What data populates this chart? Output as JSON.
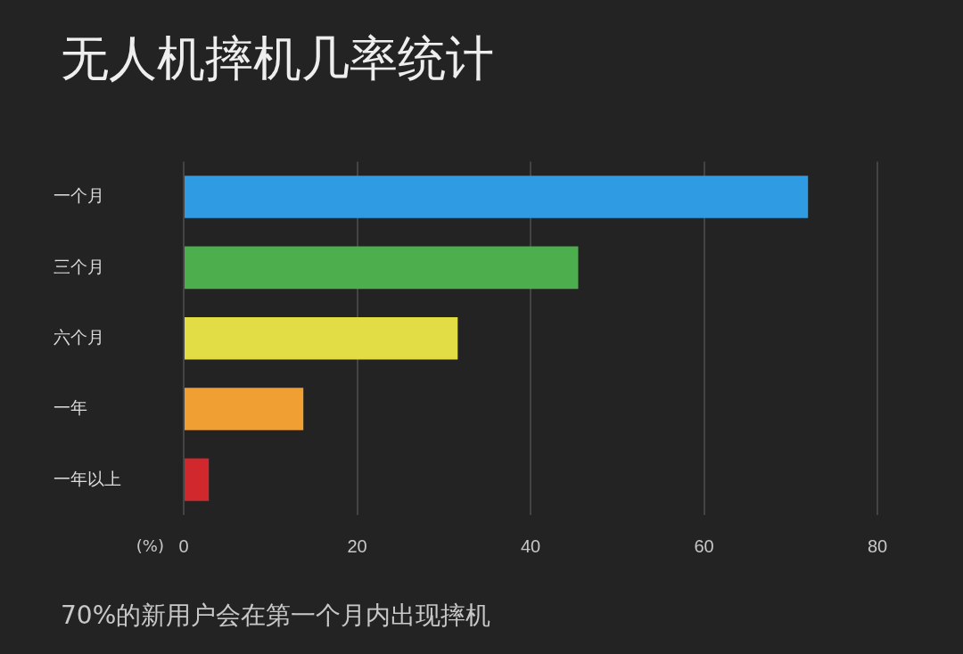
{
  "chart_data": {
    "type": "bar",
    "orientation": "horizontal",
    "title": "无人机摔机几率统计",
    "xlabel": "(%)",
    "categories": [
      "一个月",
      "三个月",
      "六个月",
      "一年",
      "一年以上"
    ],
    "values": [
      72,
      45.5,
      31.6,
      13.8,
      2.9
    ],
    "colors": [
      "#2f9be3",
      "#4cae4c",
      "#e2dc45",
      "#f0a033",
      "#d1282e"
    ],
    "xlim": [
      0,
      80
    ],
    "xticks": [
      0,
      20,
      40,
      60,
      80
    ],
    "grid": "x",
    "annotations": [
      "70%的新用户会在第一个月内出现摔机"
    ]
  }
}
